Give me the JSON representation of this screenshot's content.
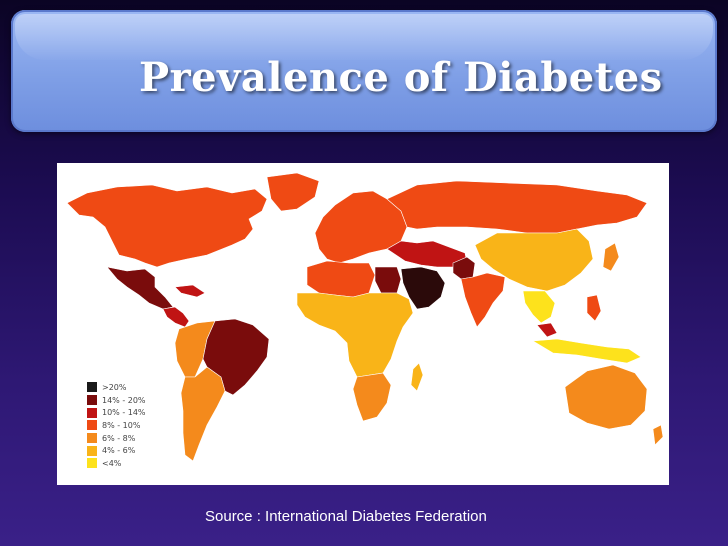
{
  "slide": {
    "title": "Prevalence of Diabetes",
    "source": "Source : International Diabetes Federation"
  },
  "legend": {
    "items": [
      {
        "label": ">20%",
        "color": "#1a1a1a"
      },
      {
        "label": "14%  - 20%",
        "color": "#7a0c0c"
      },
      {
        "label": "10%  - 14%",
        "color": "#c01414"
      },
      {
        "label": "8%  - 10%",
        "color": "#ef4a14"
      },
      {
        "label": "6%  - 8%",
        "color": "#f48a1c"
      },
      {
        "label": "4%  - 6%",
        "color": "#f9b418"
      },
      {
        "label": "<4%",
        "color": "#fde21c"
      }
    ]
  },
  "map_data": {
    "type": "choropleth",
    "regions": [
      {
        "name": "north-america",
        "category": "8%  - 10%"
      },
      {
        "name": "greenland",
        "category": "8%  - 10%"
      },
      {
        "name": "mexico",
        "category": "14%  - 20%"
      },
      {
        "name": "central-america",
        "category": "10%  - 14%"
      },
      {
        "name": "brazil",
        "category": "14%  - 20%"
      },
      {
        "name": "south-america-west",
        "category": "6%  - 8%"
      },
      {
        "name": "argentina-chile",
        "category": "6%  - 8%"
      },
      {
        "name": "europe",
        "category": "8%  - 10%"
      },
      {
        "name": "russia",
        "category": "8%  - 10%"
      },
      {
        "name": "north-africa",
        "category": "8%  - 10%"
      },
      {
        "name": "egypt",
        "category": "14%  - 20%"
      },
      {
        "name": "arabia",
        "category": ">20%"
      },
      {
        "name": "sub-saharan-africa",
        "category": "4%  - 6%"
      },
      {
        "name": "southern-africa",
        "category": "6%  - 8%"
      },
      {
        "name": "middle-east",
        "category": "10%  - 14%"
      },
      {
        "name": "pakistan",
        "category": "14%  - 20%"
      },
      {
        "name": "india",
        "category": "8%  - 10%"
      },
      {
        "name": "china",
        "category": "4%  - 6%"
      },
      {
        "name": "southeast-asia",
        "category": "<4%"
      },
      {
        "name": "indonesia",
        "category": "<4%"
      },
      {
        "name": "australia",
        "category": "6%  - 8%"
      },
      {
        "name": "japan",
        "category": "6%  - 8%"
      }
    ]
  }
}
